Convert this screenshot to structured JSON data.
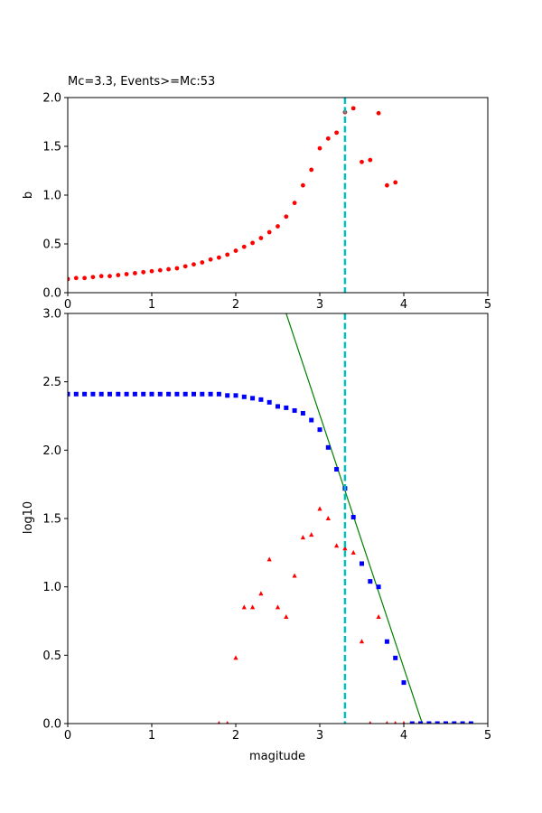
{
  "colors": {
    "b_points": "#ff0000",
    "cumulative": "#0000ff",
    "noncumulative": "#ff0000",
    "fit_line": "#008000",
    "mc_line": "#00bfbf",
    "frame": "#000000"
  },
  "chart_data": [
    {
      "type": "scatter",
      "title": "Mc=3.3, Events>=Mc:53",
      "xlabel": "",
      "ylabel": "b",
      "xlim": [
        0,
        5
      ],
      "ylim": [
        0,
        2.0
      ],
      "xticks": [
        "0",
        "1",
        "2",
        "3",
        "4",
        "5"
      ],
      "yticks": [
        "0.0",
        "0.5",
        "1.0",
        "1.5",
        "2.0"
      ],
      "mc": 3.3,
      "series": [
        {
          "marker": "circle",
          "x": [
            0.0,
            0.1,
            0.2,
            0.3,
            0.4,
            0.5,
            0.6,
            0.7,
            0.8,
            0.9,
            1.0,
            1.1,
            1.2,
            1.3,
            1.4,
            1.5,
            1.6,
            1.7,
            1.8,
            1.9,
            2.0,
            2.1,
            2.2,
            2.3,
            2.4,
            2.5,
            2.6,
            2.7,
            2.8,
            2.9,
            3.0,
            3.1,
            3.2,
            3.3,
            3.4,
            3.5,
            3.6,
            3.7,
            3.8,
            3.9
          ],
          "y": [
            0.14,
            0.15,
            0.15,
            0.16,
            0.17,
            0.17,
            0.18,
            0.19,
            0.2,
            0.21,
            0.22,
            0.23,
            0.24,
            0.25,
            0.27,
            0.29,
            0.31,
            0.34,
            0.36,
            0.39,
            0.43,
            0.47,
            0.51,
            0.56,
            0.62,
            0.68,
            0.78,
            0.92,
            1.1,
            1.26,
            1.48,
            1.58,
            1.64,
            1.85,
            1.89,
            1.34,
            1.36,
            1.84,
            1.1,
            1.13
          ]
        }
      ]
    },
    {
      "type": "scatter",
      "title": "",
      "xlabel": "magitude",
      "ylabel": "log10",
      "xlim": [
        0,
        5
      ],
      "ylim": [
        0,
        3.0
      ],
      "xticks": [
        "0",
        "1",
        "2",
        "3",
        "4",
        "5"
      ],
      "yticks": [
        "0.0",
        "0.5",
        "1.0",
        "1.5",
        "2.0",
        "2.5",
        "3.0"
      ],
      "mc": 3.3,
      "series": [
        {
          "marker": "square",
          "color_key": "cumulative",
          "x": [
            0.0,
            0.1,
            0.2,
            0.3,
            0.4,
            0.5,
            0.6,
            0.7,
            0.8,
            0.9,
            1.0,
            1.1,
            1.2,
            1.3,
            1.4,
            1.5,
            1.6,
            1.7,
            1.8,
            1.9,
            2.0,
            2.1,
            2.2,
            2.3,
            2.4,
            2.5,
            2.6,
            2.7,
            2.8,
            2.9,
            3.0,
            3.1,
            3.2,
            3.3,
            3.4,
            3.5,
            3.6,
            3.7,
            3.8,
            3.9,
            4.0,
            4.1,
            4.2,
            4.3,
            4.4,
            4.5,
            4.6,
            4.7,
            4.8
          ],
          "y": [
            2.41,
            2.41,
            2.41,
            2.41,
            2.41,
            2.41,
            2.41,
            2.41,
            2.41,
            2.41,
            2.41,
            2.41,
            2.41,
            2.41,
            2.41,
            2.41,
            2.41,
            2.41,
            2.41,
            2.4,
            2.4,
            2.39,
            2.38,
            2.37,
            2.35,
            2.32,
            2.31,
            2.29,
            2.27,
            2.22,
            2.15,
            2.02,
            1.86,
            1.72,
            1.51,
            1.17,
            1.04,
            1.0,
            0.6,
            0.48,
            0.3,
            0.0,
            0.0,
            0.0,
            0.0,
            0.0,
            0.0,
            0.0,
            0.0
          ]
        },
        {
          "marker": "triangle",
          "color_key": "noncumulative",
          "x": [
            1.8,
            1.9,
            2.0,
            2.1,
            2.2,
            2.3,
            2.4,
            2.5,
            2.6,
            2.7,
            2.8,
            2.9,
            3.0,
            3.1,
            3.2,
            3.3,
            3.4,
            3.5,
            3.6,
            3.7,
            3.8,
            3.9,
            4.0
          ],
          "y": [
            0.0,
            0.0,
            0.48,
            0.85,
            0.85,
            0.95,
            1.2,
            0.85,
            0.78,
            1.08,
            1.36,
            1.38,
            1.57,
            1.5,
            1.3,
            1.28,
            1.25,
            0.6,
            0.0,
            0.78,
            0.0,
            0.0,
            0.0
          ]
        }
      ],
      "fit_line": {
        "x": [
          2.6,
          4.22
        ],
        "y": [
          3.0,
          0.0
        ]
      }
    }
  ]
}
